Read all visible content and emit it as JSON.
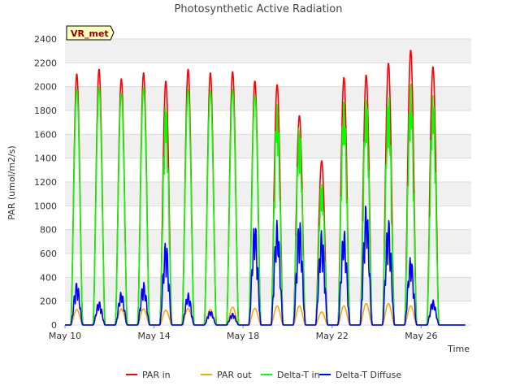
{
  "chart_data": {
    "type": "line",
    "title": "Photosynthetic Active Radiation",
    "xlabel": "Time",
    "ylabel": "PAR (umol/m2/s)",
    "site_badge": "VR_met",
    "ylim": [
      0,
      2400
    ],
    "yticks": [
      0,
      200,
      400,
      600,
      800,
      1000,
      1200,
      1400,
      1600,
      1800,
      2000,
      2200,
      2400
    ],
    "xlim": [
      "2024-05-10",
      "2024-05-28T06:00"
    ],
    "xticks": [
      {
        "date": "2024-05-10",
        "label": "May 10"
      },
      {
        "date": "2024-05-14",
        "label": "May 14"
      },
      {
        "date": "2024-05-18",
        "label": "May 18"
      },
      {
        "date": "2024-05-22",
        "label": "May 22"
      },
      {
        "date": "2024-05-26",
        "label": "May 26"
      }
    ],
    "grid": "horizontal bands",
    "legend_position": "bottom",
    "days": [
      "2024-05-10",
      "2024-05-11",
      "2024-05-12",
      "2024-05-13",
      "2024-05-14",
      "2024-05-15",
      "2024-05-16",
      "2024-05-17",
      "2024-05-18",
      "2024-05-19",
      "2024-05-20",
      "2024-05-21",
      "2024-05-22",
      "2024-05-23",
      "2024-05-24",
      "2024-05-25",
      "2024-05-26",
      "2024-05-27"
    ],
    "series": [
      {
        "name": "PAR in",
        "color": "#ff0000",
        "daily_peak": [
          2110,
          2150,
          2070,
          2120,
          2050,
          2150,
          2120,
          2130,
          2050,
          2020,
          1760,
          1380,
          2080,
          2100,
          2200,
          2310,
          2170,
          0
        ]
      },
      {
        "name": "PAR out",
        "color": "#ffa500",
        "daily_peak": [
          130,
          140,
          135,
          135,
          125,
          140,
          130,
          150,
          140,
          160,
          160,
          110,
          160,
          180,
          180,
          160,
          190,
          0
        ]
      },
      {
        "name": "Delta-T in",
        "color": "#00ff00",
        "daily_peak": [
          1980,
          2000,
          1950,
          1990,
          1870,
          1980,
          1970,
          1980,
          1930,
          1880,
          1700,
          1230,
          1920,
          1960,
          1970,
          2050,
          1970,
          0
        ]
      },
      {
        "name": "Delta-T Diffuse",
        "color": "#0000ff",
        "daily_peak": [
          360,
          200,
          280,
          360,
          710,
          270,
          120,
          100,
          870,
          880,
          890,
          800,
          810,
          1030,
          900,
          580,
          210,
          0
        ]
      }
    ]
  }
}
